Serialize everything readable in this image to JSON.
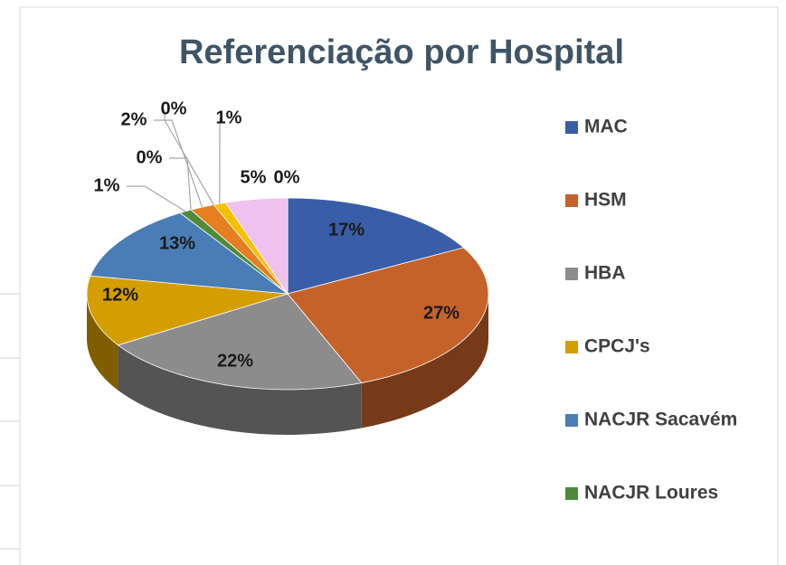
{
  "chart_data": {
    "type": "pie",
    "title": "Referenciação por Hospital",
    "categories": [
      "MAC",
      "HSM",
      "HBA",
      "CPCJ's",
      "NACJR Sacavém",
      "NACJR Loures",
      null,
      null,
      null,
      null,
      null,
      null
    ],
    "values": [
      17,
      27,
      22,
      12,
      13,
      1,
      0,
      2,
      0,
      1,
      5,
      0
    ],
    "value_labels": [
      "17%",
      "27%",
      "22%",
      "12%",
      "13%",
      "1%",
      "0%",
      "2%",
      "0%",
      "1%",
      "5%",
      "0%"
    ],
    "colors": [
      "#3a5da8",
      "#c5622a",
      "#8c8c8c",
      "#d49e00",
      "#4a7db5",
      "#4e8a3a",
      "#2f5597",
      "#e67e22",
      "#7f7f7f",
      "#f5c000",
      "#f0c0ee",
      "#4472c4"
    ],
    "legend": "right"
  }
}
